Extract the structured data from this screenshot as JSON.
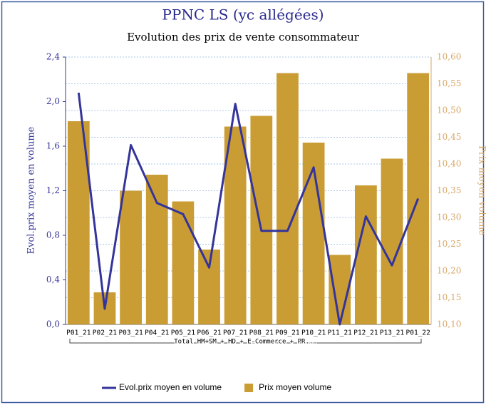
{
  "chart_data": {
    "type": "bar",
    "title": "PPNC LS (yc allégées)",
    "subtitle": "Evolution des prix de vente consommateur",
    "y_label": "Evol.prix moyen en volume",
    "y2_label": "Prix moyen volume",
    "group_label": "Total HM+SM + HD + E-Commerce + PR...",
    "categories": [
      "P01_21",
      "P02_21",
      "P03_21",
      "P04_21",
      "P05_21",
      "P06_21",
      "P07_21",
      "P08_21",
      "P09_21",
      "P10_21",
      "P11_21",
      "P12_21",
      "P13_21",
      "P01_22"
    ],
    "series": [
      {
        "name": "Evol.prix moyen en volume",
        "type": "line",
        "axis": "y",
        "color": "#34349a",
        "values": [
          2.08,
          0.14,
          1.61,
          1.09,
          0.99,
          0.51,
          1.98,
          0.84,
          0.84,
          1.41,
          0.0,
          0.97,
          0.53,
          1.13
        ]
      },
      {
        "name": "Prix moyen volume",
        "type": "bar",
        "axis": "y2",
        "color": "#c99d34",
        "values": [
          10.48,
          10.16,
          10.35,
          10.38,
          10.33,
          10.24,
          10.47,
          10.49,
          10.57,
          10.44,
          10.23,
          10.36,
          10.41,
          10.57
        ]
      }
    ],
    "ylim": [
      0,
      2.4
    ],
    "yticks": [
      {
        "value": 0,
        "label": "0,0"
      },
      {
        "value": 0.4,
        "label": "0,4"
      },
      {
        "value": 0.8,
        "label": "0,8"
      },
      {
        "value": 1.2,
        "label": "1,2"
      },
      {
        "value": 1.6,
        "label": "1,6"
      },
      {
        "value": 2.0,
        "label": "2,0"
      },
      {
        "value": 2.4,
        "label": "2,4"
      }
    ],
    "y2lim": [
      10.1,
      10.6
    ],
    "y2ticks": [
      {
        "value": 10.1,
        "label": "10,10"
      },
      {
        "value": 10.15,
        "label": "10,15"
      },
      {
        "value": 10.2,
        "label": "10,20"
      },
      {
        "value": 10.25,
        "label": "10,25"
      },
      {
        "value": 10.3,
        "label": "10,30"
      },
      {
        "value": 10.35,
        "label": "10,35"
      },
      {
        "value": 10.4,
        "label": "10,40"
      },
      {
        "value": 10.45,
        "label": "10,45"
      },
      {
        "value": 10.5,
        "label": "10,50"
      },
      {
        "value": 10.55,
        "label": "10,55"
      },
      {
        "value": 10.6,
        "label": "10,60"
      }
    ],
    "grid": true,
    "legend": "bottom"
  }
}
